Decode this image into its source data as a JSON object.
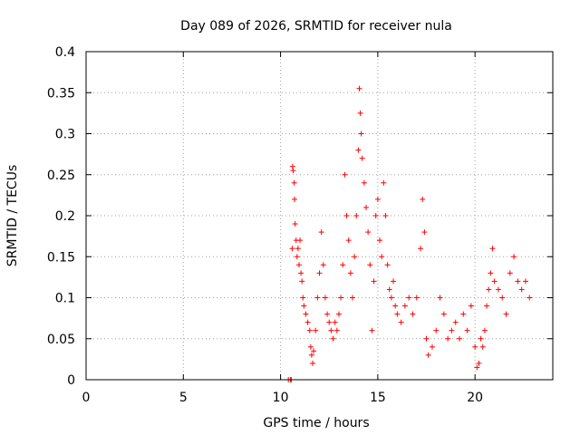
{
  "chart_data": {
    "type": "scatter",
    "title": "Day 089 of 2026, SRMTID for receiver nula",
    "xlabel": "GPS time / hours",
    "ylabel": "SRMTID / TECUs",
    "xlim": [
      0,
      24
    ],
    "ylim": [
      0,
      0.4
    ],
    "x_ticks": [
      0,
      5,
      10,
      15,
      20
    ],
    "x_tick_labels": [
      "0",
      "5",
      "10",
      "15",
      "20"
    ],
    "y_ticks": [
      0,
      0.05,
      0.1,
      0.15,
      0.2,
      0.25,
      0.3,
      0.35,
      0.4
    ],
    "y_tick_labels": [
      "0",
      "0.05",
      "0.1",
      "0.15",
      "0.2",
      "0.25",
      "0.3",
      "0.35",
      "0.4"
    ],
    "grid": true,
    "legend": "none",
    "marker": "plus",
    "color": "#ff0000",
    "series": [
      {
        "name": "SRMTID",
        "points": [
          [
            10.4,
            0.0
          ],
          [
            10.5,
            0.0
          ],
          [
            10.55,
            0.0
          ],
          [
            10.6,
            0.16
          ],
          [
            10.62,
            0.26
          ],
          [
            10.65,
            0.255
          ],
          [
            10.7,
            0.24
          ],
          [
            10.72,
            0.22
          ],
          [
            10.75,
            0.19
          ],
          [
            10.8,
            0.17
          ],
          [
            10.85,
            0.15
          ],
          [
            10.9,
            0.16
          ],
          [
            10.95,
            0.14
          ],
          [
            11.0,
            0.17
          ],
          [
            11.05,
            0.13
          ],
          [
            11.1,
            0.12
          ],
          [
            11.15,
            0.1
          ],
          [
            11.2,
            0.09
          ],
          [
            11.3,
            0.08
          ],
          [
            11.4,
            0.07
          ],
          [
            11.5,
            0.06
          ],
          [
            11.55,
            0.04
          ],
          [
            11.6,
            0.03
          ],
          [
            11.65,
            0.02
          ],
          [
            11.7,
            0.035
          ],
          [
            11.8,
            0.06
          ],
          [
            11.9,
            0.1
          ],
          [
            12.0,
            0.13
          ],
          [
            12.1,
            0.18
          ],
          [
            12.2,
            0.14
          ],
          [
            12.3,
            0.1
          ],
          [
            12.4,
            0.08
          ],
          [
            12.5,
            0.07
          ],
          [
            12.6,
            0.06
          ],
          [
            12.7,
            0.05
          ],
          [
            12.8,
            0.07
          ],
          [
            12.9,
            0.06
          ],
          [
            13.0,
            0.08
          ],
          [
            13.1,
            0.1
          ],
          [
            13.2,
            0.14
          ],
          [
            13.3,
            0.25
          ],
          [
            13.4,
            0.2
          ],
          [
            13.5,
            0.17
          ],
          [
            13.6,
            0.13
          ],
          [
            13.7,
            0.1
          ],
          [
            13.8,
            0.15
          ],
          [
            13.9,
            0.2
          ],
          [
            14.0,
            0.28
          ],
          [
            14.05,
            0.355
          ],
          [
            14.1,
            0.325
          ],
          [
            14.15,
            0.3
          ],
          [
            14.2,
            0.27
          ],
          [
            14.3,
            0.24
          ],
          [
            14.4,
            0.21
          ],
          [
            14.5,
            0.18
          ],
          [
            14.6,
            0.14
          ],
          [
            14.7,
            0.06
          ],
          [
            14.8,
            0.12
          ],
          [
            14.9,
            0.2
          ],
          [
            15.0,
            0.22
          ],
          [
            15.1,
            0.17
          ],
          [
            15.2,
            0.15
          ],
          [
            15.3,
            0.24
          ],
          [
            15.4,
            0.2
          ],
          [
            15.5,
            0.14
          ],
          [
            15.6,
            0.11
          ],
          [
            15.7,
            0.1
          ],
          [
            15.8,
            0.12
          ],
          [
            15.9,
            0.09
          ],
          [
            16.0,
            0.08
          ],
          [
            16.2,
            0.07
          ],
          [
            16.4,
            0.09
          ],
          [
            16.6,
            0.1
          ],
          [
            16.8,
            0.08
          ],
          [
            17.0,
            0.1
          ],
          [
            17.2,
            0.16
          ],
          [
            17.3,
            0.22
          ],
          [
            17.4,
            0.18
          ],
          [
            17.5,
            0.05
          ],
          [
            17.6,
            0.03
          ],
          [
            17.8,
            0.04
          ],
          [
            18.0,
            0.06
          ],
          [
            18.2,
            0.1
          ],
          [
            18.4,
            0.08
          ],
          [
            18.6,
            0.05
          ],
          [
            18.8,
            0.06
          ],
          [
            19.0,
            0.07
          ],
          [
            19.2,
            0.05
          ],
          [
            19.4,
            0.08
          ],
          [
            19.6,
            0.06
          ],
          [
            19.8,
            0.09
          ],
          [
            20.0,
            0.04
          ],
          [
            20.1,
            0.015
          ],
          [
            20.2,
            0.02
          ],
          [
            20.3,
            0.05
          ],
          [
            20.4,
            0.04
          ],
          [
            20.5,
            0.06
          ],
          [
            20.6,
            0.09
          ],
          [
            20.7,
            0.11
          ],
          [
            20.8,
            0.13
          ],
          [
            20.9,
            0.16
          ],
          [
            21.0,
            0.12
          ],
          [
            21.2,
            0.11
          ],
          [
            21.4,
            0.1
          ],
          [
            21.6,
            0.08
          ],
          [
            21.8,
            0.13
          ],
          [
            22.0,
            0.15
          ],
          [
            22.2,
            0.12
          ],
          [
            22.4,
            0.11
          ],
          [
            22.6,
            0.12
          ],
          [
            22.8,
            0.1
          ]
        ]
      }
    ]
  }
}
